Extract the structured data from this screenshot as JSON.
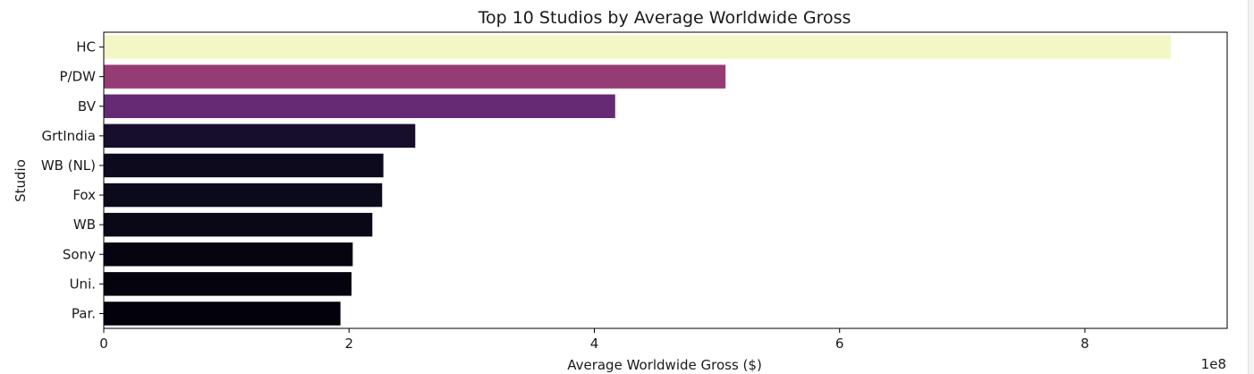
{
  "chart_data": {
    "type": "bar",
    "orientation": "horizontal",
    "title": "Top 10 Studios by Average Worldwide Gross",
    "xlabel": "Average Worldwide Gross ($)",
    "ylabel": "Studio",
    "x_offset_label": "1e8",
    "xlim": [
      0,
      9.16
    ],
    "xticks": [
      0,
      2,
      4,
      6,
      8
    ],
    "grid": false,
    "categories": [
      "HC",
      "P/DW",
      "BV",
      "GrtIndia",
      "WB (NL)",
      "Fox",
      "WB",
      "Sony",
      "Uni.",
      "Par."
    ],
    "values": [
      8.7,
      5.07,
      4.17,
      2.54,
      2.28,
      2.27,
      2.19,
      2.03,
      2.02,
      1.93
    ],
    "colors": [
      "#f3f6c5",
      "#963c74",
      "#662a74",
      "#170e2c",
      "#0d0a1d",
      "#0b0a1a",
      "#0a0817",
      "#060410",
      "#05040e",
      "#03020a"
    ]
  }
}
